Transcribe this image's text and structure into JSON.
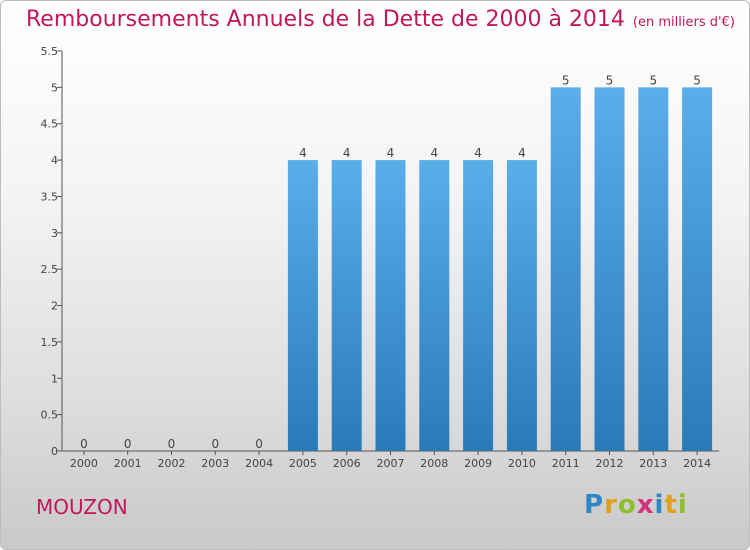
{
  "title": "Remboursements Annuels de la Dette de 2000 à 2014",
  "unit": "(en milliers d'€)",
  "commune": "MOUZON",
  "logo": {
    "name": "Proxiti"
  },
  "colors": {
    "title": "#c2185b",
    "bar_top": "#5aaee9",
    "bar_bottom": "#2a7ab8",
    "axis": "#555555"
  },
  "chart_data": {
    "type": "bar",
    "categories": [
      "2000",
      "2001",
      "2002",
      "2003",
      "2004",
      "2005",
      "2006",
      "2007",
      "2008",
      "2009",
      "2010",
      "2011",
      "2012",
      "2013",
      "2014"
    ],
    "values": [
      0,
      0,
      0,
      0,
      0,
      4,
      4,
      4,
      4,
      4,
      4,
      5,
      5,
      5,
      5
    ],
    "data_labels": [
      "0",
      "0",
      "0",
      "0",
      "0",
      "4",
      "4",
      "4",
      "4",
      "4",
      "4",
      "5",
      "5",
      "5",
      "5"
    ],
    "yticks": [
      0,
      0.5,
      1,
      1.5,
      2,
      2.5,
      3,
      3.5,
      4,
      4.5,
      5,
      5.5
    ],
    "ytick_labels": [
      "0",
      "0.5",
      "1",
      "1.5",
      "2",
      "2.5",
      "3",
      "3.5",
      "4",
      "4.5",
      "5",
      "5.5"
    ],
    "ylim": [
      0,
      5.5
    ],
    "grid": false,
    "legend": false
  }
}
